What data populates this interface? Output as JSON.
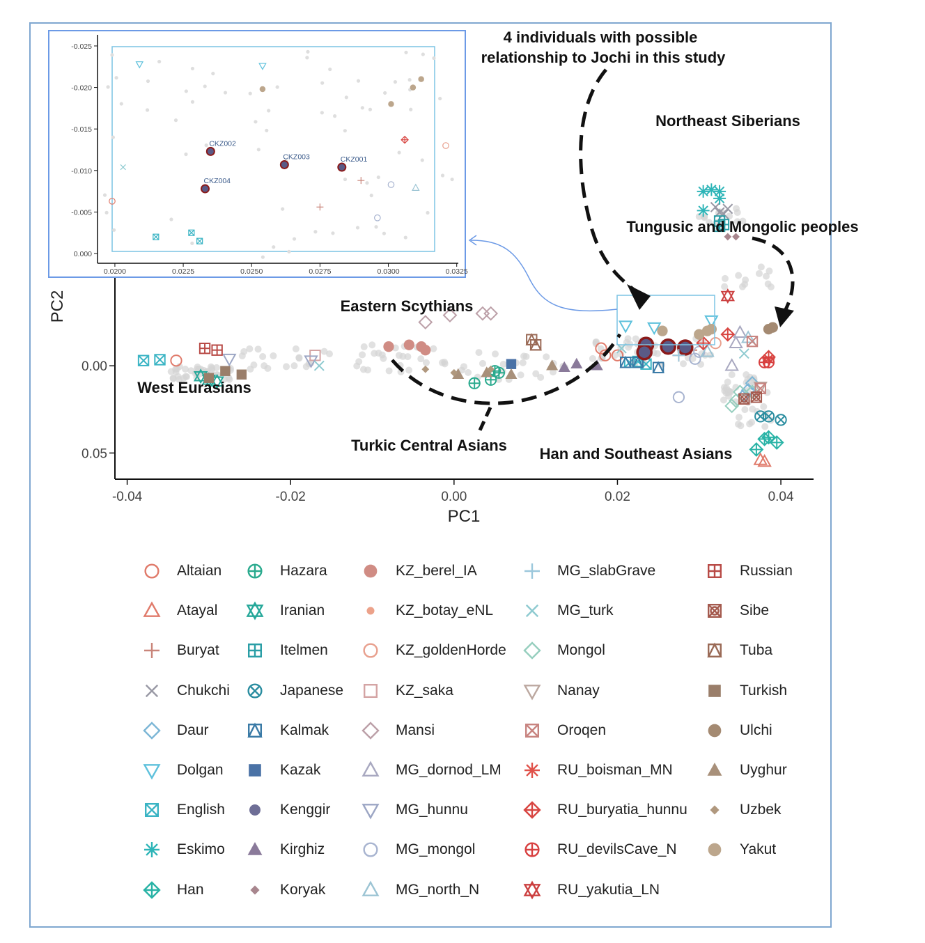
{
  "chart_data": {
    "type": "scatter",
    "title": "",
    "xlabel": "PC1",
    "ylabel": "PC2",
    "xticks": [
      "-0.04",
      "-0.02",
      "0.00",
      "0.02",
      "0.04"
    ],
    "yticks": [
      "0.00",
      "0.05"
    ],
    "xlim": [
      -0.0415,
      0.044
    ],
    "ylim_reversed": [
      -0.058,
      0.065
    ],
    "grid": false,
    "annotations": {
      "jochi": [
        "4 individuals with possible",
        "relationship to Jochi in this study"
      ],
      "northeast": "Northeast Siberians",
      "tungusic": "Tungusic and Mongolic peoples",
      "scythians": "Eastern Scythians",
      "west": "West Eurasians",
      "turkic": "Turkic Central Asians",
      "han": "Han and Southeast Asians"
    },
    "inset": {
      "xticks": [
        "0.0200",
        "0.0225",
        "0.0250",
        "0.0275",
        "0.0300",
        "0.0325"
      ],
      "yticks": [
        "-0.025",
        "-0.020",
        "-0.015",
        "-0.010",
        "-0.005",
        "0.000"
      ],
      "xlim": [
        0.0199,
        0.0321
      ],
      "ylim": [
        -0.0255,
        0.0005
      ],
      "study_samples": [
        {
          "label": "CKZ002",
          "x": 0.0235,
          "y": -0.0123
        },
        {
          "label": "CKZ003",
          "x": 0.0262,
          "y": -0.0107
        },
        {
          "label": "CKZ001",
          "x": 0.0283,
          "y": -0.0104
        },
        {
          "label": "CKZ004",
          "x": 0.0233,
          "y": -0.0078
        }
      ],
      "others": [
        {
          "group": "Dolgan",
          "x": 0.0209,
          "y": -0.0228
        },
        {
          "group": "Dolgan",
          "x": 0.0254,
          "y": -0.0226
        },
        {
          "group": "Yakut",
          "x": 0.0254,
          "y": -0.0198
        },
        {
          "group": "Yakut",
          "x": 0.0301,
          "y": -0.018
        },
        {
          "group": "Yakut",
          "x": 0.0309,
          "y": -0.02
        },
        {
          "group": "Yakut",
          "x": 0.0312,
          "y": -0.021
        },
        {
          "group": "RU_buryatia_hunnu",
          "x": 0.0306,
          "y": -0.0137
        },
        {
          "group": "KZ_goldenHorde",
          "x": 0.0321,
          "y": -0.013
        },
        {
          "group": "MG_turk",
          "x": 0.0203,
          "y": -0.0104
        },
        {
          "group": "Buryat",
          "x": 0.029,
          "y": -0.0088
        },
        {
          "group": "MG_mongol",
          "x": 0.0301,
          "y": -0.0083
        },
        {
          "group": "MG_north_N",
          "x": 0.031,
          "y": -0.0079
        },
        {
          "group": "Altaian",
          "x": 0.0199,
          "y": -0.0063
        },
        {
          "group": "Buryat",
          "x": 0.0275,
          "y": -0.0056
        },
        {
          "group": "MG_mongol",
          "x": 0.0296,
          "y": -0.0043
        },
        {
          "group": "English",
          "x": 0.0215,
          "y": -0.002
        },
        {
          "group": "English",
          "x": 0.0228,
          "y": -0.0025
        },
        {
          "group": "English",
          "x": 0.0231,
          "y": -0.0015
        }
      ]
    },
    "series": [
      {
        "name": "Altaian",
        "points": [
          [
            -0.034,
            -0.003
          ],
          [
            0.018,
            -0.01
          ],
          [
            0.0185,
            -0.006
          ],
          [
            0.02,
            -0.006
          ]
        ]
      },
      {
        "name": "Atayal",
        "points": [
          [
            0.0375,
            0.054
          ],
          [
            0.038,
            0.055
          ]
        ]
      },
      {
        "name": "Buryat",
        "points": [
          [
            0.0275,
            -0.006
          ],
          [
            0.029,
            -0.009
          ]
        ]
      },
      {
        "name": "Chukchi",
        "points": [
          [
            0.032,
            -0.091
          ],
          [
            0.0325,
            -0.088
          ],
          [
            0.0335,
            -0.09
          ],
          [
            0.033,
            -0.087
          ]
        ]
      },
      {
        "name": "Daur",
        "points": [
          [
            0.0365,
            0.01
          ],
          [
            0.036,
            0.014
          ],
          [
            0.0355,
            0.017
          ]
        ]
      },
      {
        "name": "Dolgan",
        "points": [
          [
            0.021,
            -0.023
          ],
          [
            0.0245,
            -0.022
          ],
          [
            0.0315,
            -0.026
          ]
        ]
      },
      {
        "name": "English",
        "points": [
          [
            -0.038,
            -0.003
          ],
          [
            -0.036,
            -0.0035
          ],
          [
            0.0215,
            -0.002
          ],
          [
            0.0225,
            -0.0025
          ],
          [
            0.0235,
            -0.001
          ]
        ]
      },
      {
        "name": "Eskimo",
        "points": [
          [
            0.0305,
            -0.1
          ],
          [
            0.0315,
            -0.101
          ],
          [
            0.0325,
            -0.096
          ],
          [
            0.0305,
            -0.089
          ],
          [
            0.0325,
            -0.1
          ]
        ]
      },
      {
        "name": "Han",
        "points": [
          [
            0.038,
            0.042
          ],
          [
            0.0395,
            0.044
          ],
          [
            0.037,
            0.048
          ],
          [
            0.0385,
            0.041
          ]
        ]
      },
      {
        "name": "Hazara",
        "points": [
          [
            0.0025,
            0.01
          ],
          [
            0.0045,
            0.008
          ],
          [
            0.0055,
            0.004
          ],
          [
            0.005,
            0.003
          ]
        ]
      },
      {
        "name": "Iranian",
        "points": [
          [
            -0.031,
            0.006
          ],
          [
            -0.03,
            0.008
          ],
          [
            -0.029,
            0.009
          ]
        ]
      },
      {
        "name": "Itelmen",
        "points": [
          [
            0.0325,
            -0.08
          ],
          [
            0.033,
            -0.081
          ],
          [
            0.0325,
            -0.083
          ]
        ]
      },
      {
        "name": "Japanese",
        "points": [
          [
            0.0375,
            0.029
          ],
          [
            0.0385,
            0.029
          ],
          [
            0.04,
            0.031
          ]
        ]
      },
      {
        "name": "Kalmak",
        "points": [
          [
            0.021,
            -0.002
          ],
          [
            0.0225,
            -0.002
          ],
          [
            0.025,
            0.001
          ]
        ]
      },
      {
        "name": "Kazak",
        "points": [
          [
            0.007,
            -0.001
          ]
        ]
      },
      {
        "name": "Kenggir",
        "points": [
          [
            0.0235,
            -0.012
          ],
          [
            0.0262,
            -0.011
          ],
          [
            0.0283,
            -0.0105
          ],
          [
            0.0233,
            -0.0078
          ]
        ]
      },
      {
        "name": "Kirghiz",
        "points": [
          [
            0.0135,
            0.001
          ],
          [
            0.015,
            -0.001
          ],
          [
            0.0175,
            0.0
          ]
        ]
      },
      {
        "name": "Koryak",
        "points": [
          [
            0.0335,
            -0.074
          ],
          [
            0.0345,
            -0.074
          ]
        ]
      },
      {
        "name": "KZ_berel_IA",
        "points": [
          [
            -0.008,
            -0.011
          ],
          [
            -0.0055,
            -0.012
          ],
          [
            -0.004,
            -0.011
          ],
          [
            -0.0035,
            -0.009
          ]
        ]
      },
      {
        "name": "KZ_botay_eNL",
        "points": []
      },
      {
        "name": "KZ_goldenHorde",
        "points": [
          [
            0.032,
            -0.013
          ]
        ]
      },
      {
        "name": "KZ_saka",
        "points": [
          [
            -0.017,
            -0.006
          ]
        ]
      },
      {
        "name": "Mansi",
        "points": [
          [
            -0.0035,
            -0.025
          ],
          [
            -0.0005,
            -0.029
          ],
          [
            0.0035,
            -0.03
          ],
          [
            0.0045,
            -0.03
          ]
        ]
      },
      {
        "name": "MG_dornod_LM",
        "points": [
          [
            0.034,
            0.0
          ],
          [
            0.035,
            -0.019
          ],
          [
            0.0345,
            -0.013
          ]
        ]
      },
      {
        "name": "MG_hunnu",
        "points": [
          [
            -0.0275,
            -0.004
          ],
          [
            -0.0175,
            -0.003
          ]
        ]
      },
      {
        "name": "MG_mongol",
        "points": [
          [
            0.0275,
            0.018
          ],
          [
            0.0295,
            -0.004
          ],
          [
            0.03,
            -0.008
          ]
        ]
      },
      {
        "name": "MG_north_N",
        "points": [
          [
            0.031,
            -0.008
          ],
          [
            0.036,
            -0.016
          ]
        ]
      },
      {
        "name": "MG_slabGrave",
        "points": [
          [
            0.0275,
            -0.006
          ]
        ]
      },
      {
        "name": "MG_turk",
        "points": [
          [
            -0.0165,
            0.0
          ],
          [
            0.0205,
            -0.01
          ],
          [
            0.0355,
            -0.007
          ]
        ]
      },
      {
        "name": "Mongol",
        "points": [
          [
            0.035,
            0.015
          ],
          [
            0.034,
            0.023
          ],
          [
            0.0345,
            0.02
          ],
          [
            0.0365,
            0.015
          ]
        ]
      },
      {
        "name": "Nanay",
        "points": [
          [
            0.0375,
            0.012
          ]
        ]
      },
      {
        "name": "Oroqen",
        "points": [
          [
            0.0375,
            0.013
          ],
          [
            0.0365,
            -0.014
          ]
        ]
      },
      {
        "name": "RU_boisman_MN",
        "points": [
          [
            0.0385,
            -0.004
          ]
        ]
      },
      {
        "name": "RU_buryatia_hunnu",
        "points": [
          [
            0.0305,
            -0.013
          ],
          [
            0.0335,
            -0.018
          ],
          [
            0.0385,
            -0.005
          ]
        ]
      },
      {
        "name": "RU_devilsCave_N",
        "points": [
          [
            0.038,
            -0.002
          ],
          [
            0.0385,
            -0.002
          ]
        ]
      },
      {
        "name": "RU_yakutia_LN",
        "points": [
          [
            0.0335,
            -0.04
          ]
        ]
      },
      {
        "name": "Russian",
        "points": [
          [
            -0.0305,
            -0.01
          ],
          [
            -0.029,
            -0.009
          ]
        ]
      },
      {
        "name": "Sibe",
        "points": [
          [
            0.0355,
            0.019
          ],
          [
            0.037,
            0.018
          ]
        ]
      },
      {
        "name": "Tuba",
        "points": [
          [
            0.0095,
            -0.015
          ],
          [
            0.01,
            -0.012
          ]
        ]
      },
      {
        "name": "Turkish",
        "points": [
          [
            -0.028,
            0.003
          ],
          [
            -0.026,
            0.005
          ],
          [
            -0.03,
            0.007
          ]
        ]
      },
      {
        "name": "Ulchi",
        "points": [
          [
            0.0385,
            -0.021
          ],
          [
            0.039,
            -0.022
          ]
        ]
      },
      {
        "name": "Uyghur",
        "points": [
          [
            0.0005,
            0.005
          ],
          [
            0.004,
            0.004
          ],
          [
            0.007,
            0.005
          ],
          [
            0.012,
            0.0
          ]
        ]
      },
      {
        "name": "Uzbek",
        "points": [
          [
            -0.0035,
            0.002
          ],
          [
            0.0,
            0.004
          ],
          [
            0.0045,
            0.002
          ]
        ]
      },
      {
        "name": "Yakut",
        "points": [
          [
            0.0255,
            -0.02
          ],
          [
            0.03,
            -0.018
          ],
          [
            0.031,
            -0.02
          ],
          [
            0.0315,
            -0.021
          ]
        ]
      }
    ]
  },
  "legend": [
    {
      "name": "Altaian",
      "shape": "circle-open",
      "color": "#e07a6a"
    },
    {
      "name": "Atayal",
      "shape": "triangle-open",
      "color": "#e07a6a"
    },
    {
      "name": "Buryat",
      "shape": "plus",
      "color": "#c9857a"
    },
    {
      "name": "Chukchi",
      "shape": "x",
      "color": "#9898a4"
    },
    {
      "name": "Daur",
      "shape": "diamond-open",
      "color": "#7cb6d6"
    },
    {
      "name": "Dolgan",
      "shape": "triangle-down-open",
      "color": "#5ec1dc"
    },
    {
      "name": "English",
      "shape": "square-x",
      "color": "#3ab4c4"
    },
    {
      "name": "Eskimo",
      "shape": "asterisk",
      "color": "#2eb5b8"
    },
    {
      "name": "Han",
      "shape": "diamond-plus",
      "color": "#29b3a6"
    },
    {
      "name": "Hazara",
      "shape": "circle-plus",
      "color": "#2aaa8e"
    },
    {
      "name": "Iranian",
      "shape": "star-david",
      "color": "#26a89a"
    },
    {
      "name": "Itelmen",
      "shape": "square-plus",
      "color": "#2a9ea6"
    },
    {
      "name": "Japanese",
      "shape": "circle-x",
      "color": "#2a8da0"
    },
    {
      "name": "Kalmak",
      "shape": "square-triangle",
      "color": "#3a7aa6"
    },
    {
      "name": "Kazak",
      "shape": "square-filled",
      "color": "#4a72a6"
    },
    {
      "name": "Kenggir",
      "shape": "circle-filled",
      "color": "#6e6e96"
    },
    {
      "name": "Kirghiz",
      "shape": "triangle-filled",
      "color": "#8a7a9a"
    },
    {
      "name": "Koryak",
      "shape": "diamond-filled-small",
      "color": "#a8868e"
    },
    {
      "name": "KZ_berel_IA",
      "shape": "circle-filled",
      "color": "#d08c84"
    },
    {
      "name": "KZ_botay_eNL",
      "shape": "dot-small",
      "color": "#eca28a"
    },
    {
      "name": "KZ_goldenHorde",
      "shape": "circle-open",
      "color": "#e8a08e"
    },
    {
      "name": "KZ_saka",
      "shape": "square-open",
      "color": "#d4a4a4"
    },
    {
      "name": "Mansi",
      "shape": "diamond-open",
      "color": "#bca0a8"
    },
    {
      "name": "MG_dornod_LM",
      "shape": "triangle-open",
      "color": "#a8a8c0"
    },
    {
      "name": "MG_hunnu",
      "shape": "triangle-down-open",
      "color": "#9ca6c4"
    },
    {
      "name": "MG_mongol",
      "shape": "circle-open",
      "color": "#a8b4d0"
    },
    {
      "name": "MG_north_N",
      "shape": "triangle-open",
      "color": "#9cc4d4"
    },
    {
      "name": "MG_slabGrave",
      "shape": "plus",
      "color": "#9cc8dc"
    },
    {
      "name": "MG_turk",
      "shape": "x",
      "color": "#8ecad0"
    },
    {
      "name": "Mongol",
      "shape": "diamond-open",
      "color": "#96cebe"
    },
    {
      "name": "Nanay",
      "shape": "triangle-down-open",
      "color": "#bca8a0"
    },
    {
      "name": "Oroqen",
      "shape": "square-x",
      "color": "#c88480"
    },
    {
      "name": "RU_boisman_MN",
      "shape": "asterisk",
      "color": "#e0524a"
    },
    {
      "name": "RU_buryatia_hunnu",
      "shape": "diamond-plus",
      "color": "#d84642"
    },
    {
      "name": "RU_devilsCave_N",
      "shape": "circle-plus",
      "color": "#d84040"
    },
    {
      "name": "RU_yakutia_LN",
      "shape": "star-david",
      "color": "#cc4040"
    },
    {
      "name": "Russian",
      "shape": "square-plus",
      "color": "#b84a46"
    },
    {
      "name": "Sibe",
      "shape": "circle-x-square",
      "color": "#a45a4e"
    },
    {
      "name": "Tuba",
      "shape": "square-triangle",
      "color": "#9a6a56"
    },
    {
      "name": "Turkish",
      "shape": "square-filled",
      "color": "#9a7e6a"
    },
    {
      "name": "Ulchi",
      "shape": "circle-filled",
      "color": "#a48a72"
    },
    {
      "name": "Uyghur",
      "shape": "triangle-filled",
      "color": "#a8907a"
    },
    {
      "name": "Uzbek",
      "shape": "diamond-filled-small",
      "color": "#b0987e"
    },
    {
      "name": "Yakut",
      "shape": "circle-filled",
      "color": "#bca68c"
    }
  ],
  "colors": {
    "frame": "#7fa7d0",
    "study_fill": "#5a5a86",
    "study_stroke": "#8b1a1a",
    "background_points": "#d4d4d4",
    "inset_box": "#7cc4e4",
    "arrow": "#111111",
    "connector": "#6c9ae6"
  }
}
